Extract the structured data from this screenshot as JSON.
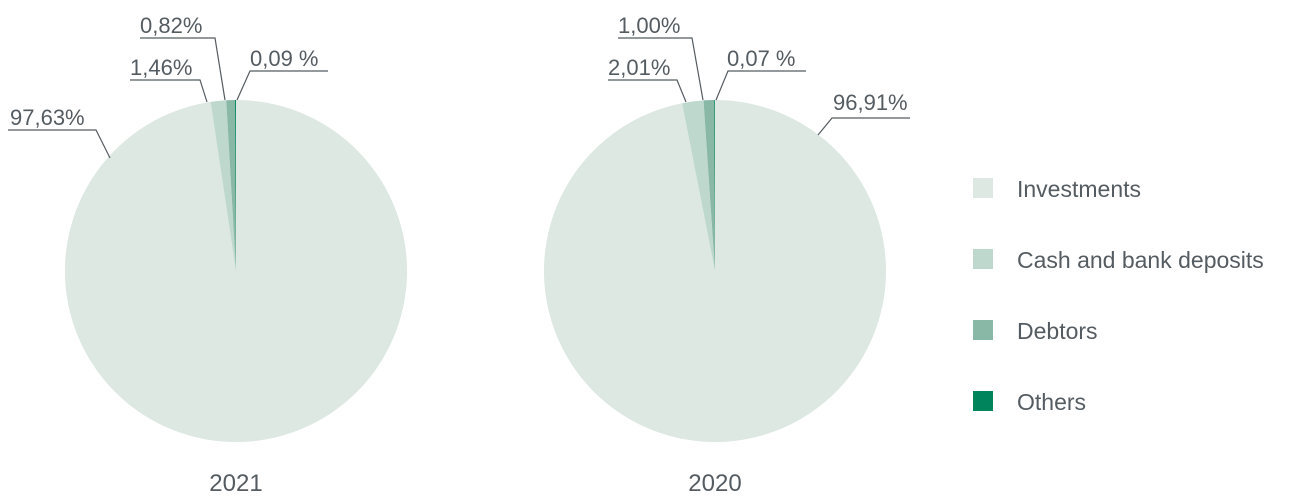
{
  "chart_data": [
    {
      "type": "pie",
      "title": "2021",
      "categories": [
        "Investments",
        "Cash and bank deposits",
        "Debtors",
        "Others"
      ],
      "values": [
        97.63,
        1.46,
        0.82,
        0.09
      ],
      "data_labels": [
        "97,63%",
        "1,46%",
        "0,82%",
        "0,09 %"
      ],
      "colors": [
        "#dce8e1",
        "#bed8ce",
        "#8ab8a6",
        "#00845c"
      ],
      "legend": "right"
    },
    {
      "type": "pie",
      "title": "2020",
      "categories": [
        "Investments",
        "Cash and bank deposits",
        "Debtors",
        "Others"
      ],
      "values": [
        96.91,
        2.01,
        1.0,
        0.07
      ],
      "data_labels": [
        "96,91%",
        "2,01%",
        "1,00%",
        "0,07 %"
      ],
      "colors": [
        "#dce8e1",
        "#bed8ce",
        "#8ab8a6",
        "#00845c"
      ],
      "legend": "right"
    }
  ],
  "legend": {
    "items": [
      {
        "label": "Investments",
        "color": "#dce8e1"
      },
      {
        "label": "Cash and bank deposits",
        "color": "#bed8ce"
      },
      {
        "label": "Debtors",
        "color": "#8ab8a6"
      },
      {
        "label": "Others",
        "color": "#00845c"
      }
    ]
  }
}
